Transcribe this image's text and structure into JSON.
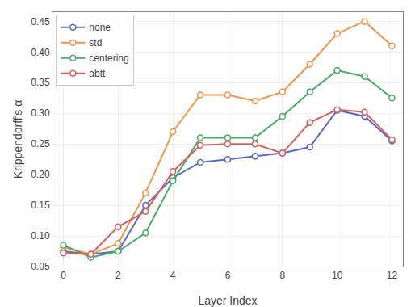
{
  "chart_data": {
    "type": "line",
    "x": [
      0,
      1,
      2,
      3,
      4,
      5,
      6,
      7,
      8,
      9,
      10,
      11,
      12
    ],
    "series": [
      {
        "name": "none",
        "color": "#5b6abf",
        "values": [
          0.075,
          0.07,
          0.075,
          0.15,
          0.195,
          0.22,
          0.225,
          0.23,
          0.235,
          0.245,
          0.305,
          0.295,
          0.255
        ]
      },
      {
        "name": "std",
        "color": "#f0954a",
        "values": [
          0.082,
          0.07,
          0.088,
          0.17,
          0.27,
          0.33,
          0.33,
          0.32,
          0.335,
          0.38,
          0.43,
          0.45,
          0.41
        ]
      },
      {
        "name": "centering",
        "color": "#4aaa66",
        "values": [
          0.085,
          0.065,
          0.075,
          0.105,
          0.19,
          0.26,
          0.26,
          0.26,
          0.295,
          0.335,
          0.37,
          0.36,
          0.325
        ]
      },
      {
        "name": "abtt",
        "color": "#d95f5f",
        "values": [
          0.072,
          0.07,
          0.115,
          0.14,
          0.205,
          0.248,
          0.25,
          0.25,
          0.235,
          0.285,
          0.306,
          0.302,
          0.257
        ]
      }
    ],
    "x_label": "Layer Index",
    "y_label": "Krippendorff's α",
    "xlim": [
      -0.4,
      12.4
    ],
    "ylim": [
      0.05,
      0.465
    ],
    "xticks": [
      0,
      2,
      4,
      6,
      8,
      10,
      12
    ],
    "yticks": [
      0.05,
      {
        "value": 0.1,
        "label": "0.10"
      },
      0.15,
      {
        "value": 0.2,
        "label": "0.20"
      },
      0.25,
      {
        "value": 0.3,
        "label": "0.30"
      },
      0.35,
      {
        "value": 0.4,
        "label": "0.40"
      },
      0.45
    ],
    "marker": "circle",
    "grid": true,
    "legend": "upper left"
  }
}
